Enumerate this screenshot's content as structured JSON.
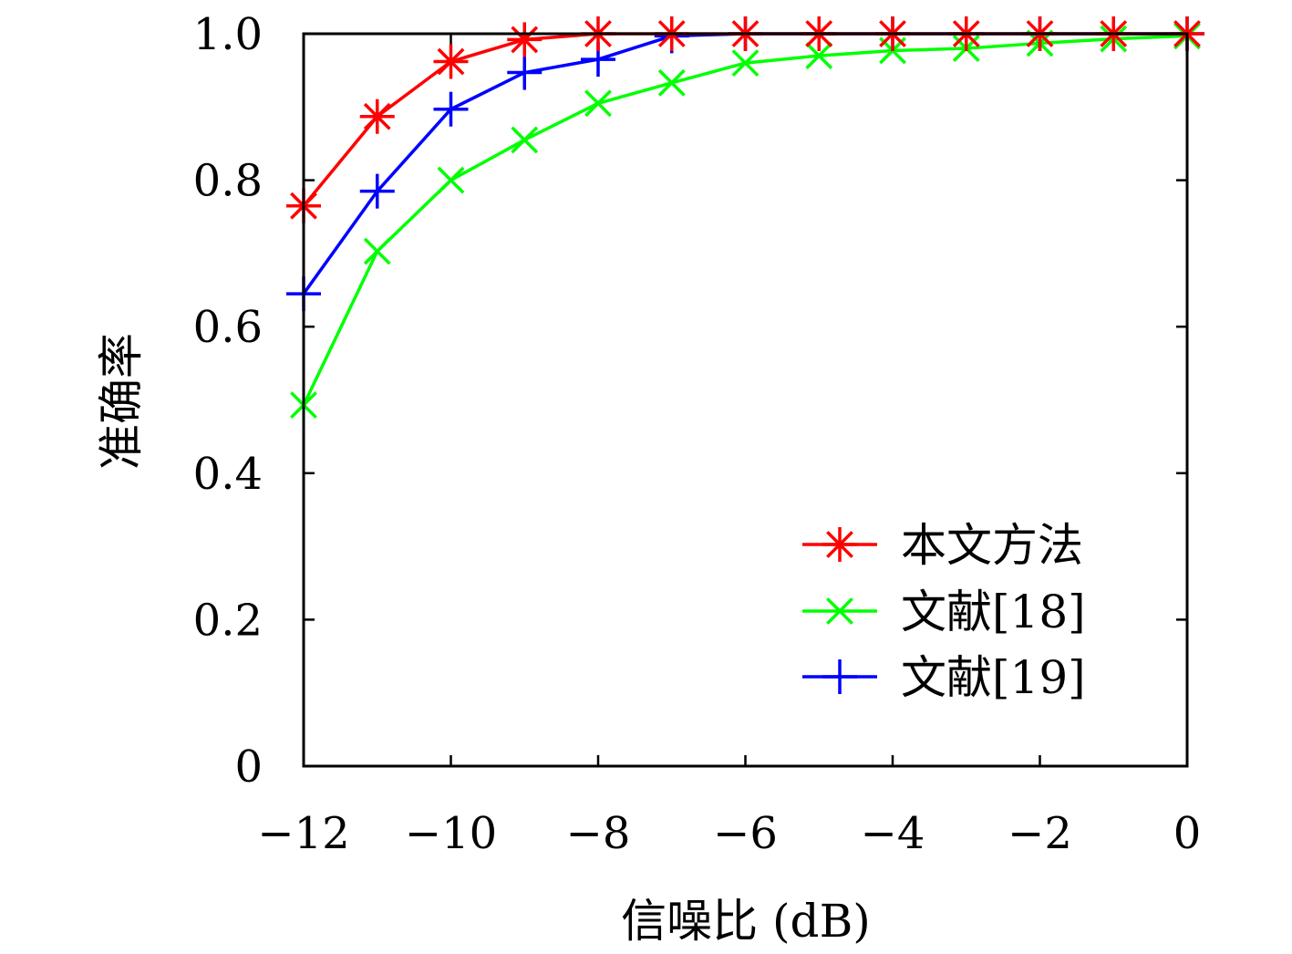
{
  "chart_data": {
    "type": "line",
    "title": "",
    "xlabel": "信噪比 (dB)",
    "ylabel": "准确率",
    "xlim": [
      -12,
      0
    ],
    "ylim": [
      0,
      1.0
    ],
    "x": [
      -12,
      -11,
      -10,
      -9,
      -8,
      -7,
      -6,
      -5,
      -4,
      -3,
      -2,
      -1,
      0
    ],
    "xticks": [
      -12,
      -10,
      -8,
      -6,
      -4,
      -2,
      0
    ],
    "xtick_labels": [
      "−12",
      "−10",
      "−8",
      "−6",
      "−4",
      "−2",
      "0"
    ],
    "yticks": [
      0,
      0.2,
      0.4,
      0.6,
      0.8,
      1.0
    ],
    "ytick_labels": [
      "0",
      "0.2",
      "0.4",
      "0.6",
      "0.8",
      "1.0"
    ],
    "grid": false,
    "legend_position": "bottom-right",
    "series": [
      {
        "name": "本文方法",
        "color": "#ff0000",
        "marker": "asterisk",
        "values": [
          0.765,
          0.887,
          0.962,
          0.992,
          1.0,
          1.0,
          1.0,
          1.0,
          1.0,
          1.0,
          1.0,
          1.0,
          1.0
        ]
      },
      {
        "name": "文献[18]",
        "color": "#00ff00",
        "marker": "x",
        "values": [
          0.493,
          0.703,
          0.8,
          0.855,
          0.905,
          0.933,
          0.96,
          0.97,
          0.977,
          0.98,
          0.987,
          0.993,
          0.997
        ]
      },
      {
        "name": "文献[19]",
        "color": "#0000ff",
        "marker": "plus",
        "values": [
          0.645,
          0.785,
          0.897,
          0.947,
          0.965,
          0.997,
          1.0,
          1.0,
          1.0,
          1.0,
          1.0,
          1.0,
          1.0
        ]
      }
    ]
  }
}
